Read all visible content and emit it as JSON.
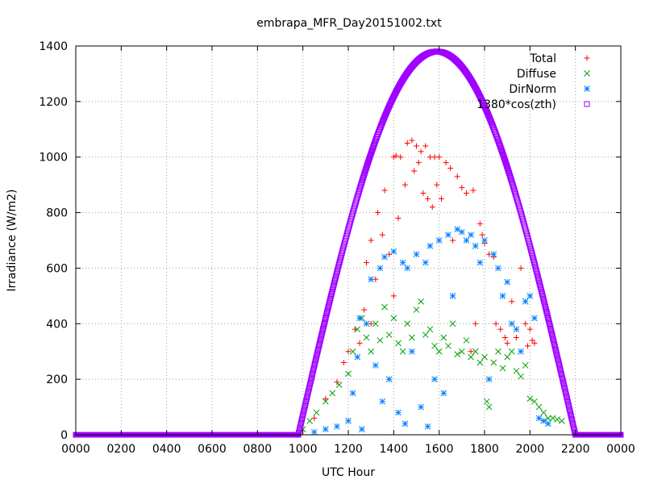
{
  "chart_data": {
    "type": "scatter",
    "title": "embrapa_MFR_Day20151002.txt",
    "xlabel": "UTC Hour",
    "ylabel": "Irradiance (W/m2)",
    "xlim": [
      0,
      24
    ],
    "ylim": [
      0,
      1400
    ],
    "x_ticks": [
      0,
      2,
      4,
      6,
      8,
      10,
      12,
      14,
      16,
      18,
      20,
      22,
      24
    ],
    "x_tick_labels": [
      "0000",
      "0200",
      "0400",
      "0600",
      "0800",
      "1000",
      "1200",
      "1400",
      "1600",
      "1800",
      "2000",
      "2200",
      "0000"
    ],
    "y_ticks": [
      0,
      200,
      400,
      600,
      800,
      1000,
      1200,
      1400
    ],
    "y_tick_labels": [
      "0",
      "200",
      "400",
      "600",
      "800",
      "1000",
      "1200",
      "1400"
    ],
    "grid": true,
    "legend_position": "top-right",
    "series": [
      {
        "name": "Total",
        "color": "#ff0000",
        "marker": "plus",
        "x": [
          10.5,
          11.0,
          11.5,
          11.8,
          12.0,
          12.3,
          12.5,
          12.7,
          12.8,
          13.0,
          13.0,
          13.2,
          13.3,
          13.5,
          13.6,
          13.8,
          14.0,
          14.0,
          14.1,
          14.2,
          14.3,
          14.5,
          14.6,
          14.8,
          14.9,
          15.0,
          15.1,
          15.2,
          15.3,
          15.4,
          15.5,
          15.6,
          15.7,
          15.8,
          15.9,
          16.0,
          16.1,
          16.3,
          16.5,
          16.6,
          16.8,
          17.0,
          17.2,
          17.4,
          17.5,
          17.6,
          17.8,
          17.9,
          18.0,
          18.2,
          18.4,
          18.5,
          18.7,
          18.9,
          19.0,
          19.2,
          19.4,
          19.6,
          19.8,
          19.9,
          20.0,
          20.1,
          20.2
        ],
        "y": [
          60,
          130,
          190,
          260,
          300,
          380,
          330,
          450,
          620,
          700,
          400,
          560,
          800,
          720,
          880,
          650,
          1000,
          500,
          1005,
          780,
          1000,
          900,
          1050,
          1060,
          950,
          1040,
          980,
          1020,
          870,
          1040,
          850,
          1000,
          820,
          1000,
          900,
          1000,
          850,
          980,
          960,
          700,
          930,
          890,
          870,
          300,
          880,
          400,
          760,
          720,
          690,
          650,
          640,
          400,
          380,
          350,
          330,
          480,
          350,
          600,
          400,
          320,
          380,
          340,
          330
        ]
      },
      {
        "name": "Diffuse",
        "color": "#00a000",
        "marker": "cross",
        "x": [
          10.0,
          10.3,
          10.6,
          11.0,
          11.3,
          11.6,
          12.0,
          12.2,
          12.4,
          12.6,
          12.8,
          13.0,
          13.2,
          13.4,
          13.6,
          13.8,
          14.0,
          14.2,
          14.4,
          14.6,
          14.8,
          15.0,
          15.2,
          15.4,
          15.6,
          15.8,
          16.0,
          16.2,
          16.4,
          16.6,
          16.8,
          17.0,
          17.2,
          17.4,
          17.6,
          17.8,
          18.0,
          18.1,
          18.2,
          18.4,
          18.6,
          18.8,
          19.0,
          19.2,
          19.4,
          19.6,
          19.8,
          20.0,
          20.2,
          20.4,
          20.6,
          20.8,
          21.0,
          21.2,
          21.4
        ],
        "y": [
          20,
          50,
          80,
          120,
          150,
          180,
          220,
          300,
          380,
          420,
          350,
          300,
          400,
          340,
          460,
          360,
          420,
          330,
          300,
          400,
          350,
          450,
          480,
          360,
          380,
          320,
          300,
          350,
          320,
          400,
          290,
          300,
          340,
          280,
          300,
          260,
          280,
          120,
          100,
          260,
          300,
          240,
          280,
          300,
          230,
          210,
          250,
          130,
          120,
          100,
          80,
          60,
          60,
          55,
          50
        ]
      },
      {
        "name": "DirNorm",
        "color": "#0080ff",
        "marker": "star",
        "x": [
          10.5,
          11.0,
          11.5,
          12.0,
          12.2,
          12.4,
          12.5,
          12.6,
          12.8,
          13.0,
          13.2,
          13.4,
          13.5,
          13.6,
          13.8,
          14.0,
          14.2,
          14.4,
          14.5,
          14.6,
          14.8,
          15.0,
          15.2,
          15.4,
          15.5,
          15.6,
          15.8,
          16.0,
          16.2,
          16.4,
          16.6,
          16.8,
          17.0,
          17.2,
          17.4,
          17.6,
          17.8,
          18.0,
          18.2,
          18.4,
          18.6,
          18.8,
          19.0,
          19.2,
          19.4,
          19.6,
          19.8,
          20.0,
          20.2,
          20.4,
          20.6,
          20.8
        ],
        "y": [
          10,
          20,
          30,
          50,
          150,
          280,
          420,
          20,
          400,
          560,
          250,
          600,
          120,
          640,
          200,
          660,
          80,
          620,
          40,
          600,
          300,
          650,
          100,
          620,
          30,
          680,
          200,
          700,
          150,
          720,
          500,
          740,
          730,
          700,
          720,
          680,
          620,
          700,
          200,
          650,
          600,
          500,
          550,
          400,
          380,
          300,
          480,
          500,
          420,
          60,
          50,
          40
        ]
      },
      {
        "name": "1380*cos(zth)",
        "color": "#a000ff",
        "marker": "square",
        "curve": {
          "start_hour": 9.8,
          "end_hour": 22.0,
          "peak_hour": 15.9,
          "peak_value": 1380
        }
      }
    ]
  }
}
